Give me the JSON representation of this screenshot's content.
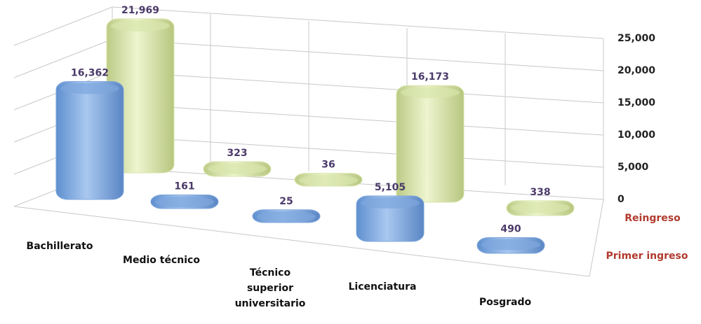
{
  "chart_data": {
    "type": "bar3d",
    "categories": [
      "Bachillerato",
      "Medio técnico",
      "Técnico superior universitario",
      "Licenciatura",
      "Posgrado"
    ],
    "series": [
      {
        "name": "Primer ingreso",
        "color": "#7ea7dd",
        "values": [
          16362,
          161,
          25,
          5105,
          490
        ],
        "value_labels": [
          "16,362",
          "161",
          "25",
          "5,105",
          "490"
        ]
      },
      {
        "name": "Reingreso",
        "color": "#d9e6ab",
        "values": [
          21969,
          323,
          36,
          16173,
          338
        ],
        "value_labels": [
          "21,969",
          "323",
          "36",
          "16,173",
          "338"
        ]
      }
    ],
    "ylim": [
      0,
      25000
    ],
    "yticks": [
      0,
      {
        "value": 5000,
        "label": "5,000"
      },
      {
        "value": 10000,
        "label": "10,000"
      },
      {
        "value": 15000,
        "label": "15,000"
      },
      {
        "value": 20000,
        "label": "20,000"
      },
      {
        "value": 25000,
        "label": "25,000"
      }
    ],
    "grid": true
  }
}
